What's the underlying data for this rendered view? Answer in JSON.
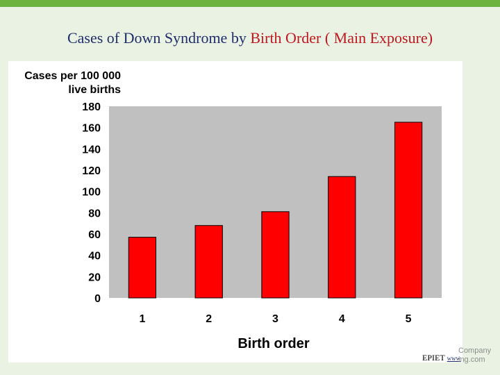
{
  "slide": {
    "title_part1": "Cases of Down Syndrome by ",
    "title_part2": "Birth Order ( Main Exposure)"
  },
  "footer": {
    "source": "EPIET",
    "link_text": "www",
    "watermark_line1": "Company",
    "watermark_line2": "ing.com"
  },
  "colors": {
    "bar": "#ff0000",
    "plot_background": "#c0c0c0",
    "top_bar": "#6db33f"
  },
  "chart_data": {
    "type": "bar",
    "categories": [
      "1",
      "2",
      "3",
      "4",
      "5"
    ],
    "values": [
      57,
      68,
      81,
      114,
      165
    ],
    "ylabel_line1": "Cases per 100 000",
    "ylabel_line2": "live births",
    "xlabel": "Birth order",
    "ylim": [
      0,
      180
    ],
    "yticks": [
      0,
      20,
      40,
      60,
      80,
      100,
      120,
      140,
      160,
      180
    ],
    "grid": false,
    "legend": "none"
  }
}
